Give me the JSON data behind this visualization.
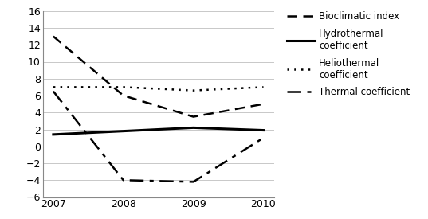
{
  "years": [
    2007,
    2008,
    2009,
    2010
  ],
  "bioclimatic_index": [
    13.0,
    6.0,
    3.5,
    5.0
  ],
  "hydrothermal_coefficient": [
    1.4,
    1.8,
    2.2,
    1.9
  ],
  "heliothermal_coefficient": [
    7.0,
    7.0,
    6.6,
    7.0
  ],
  "thermal_coefficient": [
    6.5,
    -4.0,
    -4.2,
    1.0
  ],
  "ylim": [
    -6,
    16
  ],
  "yticks": [
    -6,
    -4,
    -2,
    0,
    2,
    4,
    6,
    8,
    10,
    12,
    14,
    16
  ],
  "background_color": "#ffffff",
  "line_color": "#000000",
  "legend_labels": [
    "Bioclimatic index",
    "Hydrothermal\ncoefficient",
    "Heliothermal\ncoefficient",
    "Thermal coefficient"
  ]
}
